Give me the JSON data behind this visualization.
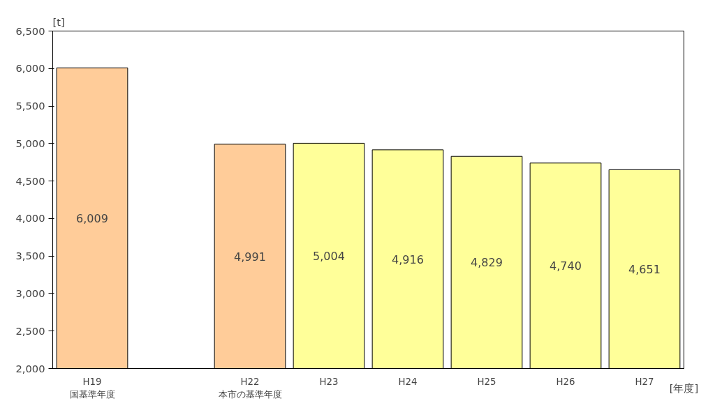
{
  "chart_data": {
    "type": "bar",
    "categories": [
      "H19\n国基準年度",
      null,
      "H22\n本市の基準年度",
      "H23",
      "H24",
      "H25",
      "H26",
      "H27"
    ],
    "values": [
      6009,
      null,
      4991,
      5004,
      4916,
      4829,
      4740,
      4651
    ],
    "value_labels": [
      "6,009",
      null,
      "4,991",
      "5,004",
      "4,916",
      "4,829",
      "4,740",
      "4,651"
    ],
    "colors": [
      "#ffcc99",
      null,
      "#ffcc99",
      "#ffff99",
      "#ffff99",
      "#ffff99",
      "#ffff99",
      "#ffff99"
    ],
    "ylabel": "[t]",
    "xlabel": "[年度]",
    "ylim": [
      2000,
      6500
    ],
    "yticks": [
      {
        "value": 2000,
        "label": "2,000"
      },
      {
        "value": 2500,
        "label": "2,500"
      },
      {
        "value": 3000,
        "label": "3,000"
      },
      {
        "value": 3500,
        "label": "3,500"
      },
      {
        "value": 4000,
        "label": "4,000"
      },
      {
        "value": 4500,
        "label": "4,500"
      },
      {
        "value": 5000,
        "label": "5,000"
      },
      {
        "value": 5500,
        "label": "5,500"
      },
      {
        "value": 6000,
        "label": "6,000"
      },
      {
        "value": 6500,
        "label": "6,500"
      }
    ],
    "grid": false
  }
}
